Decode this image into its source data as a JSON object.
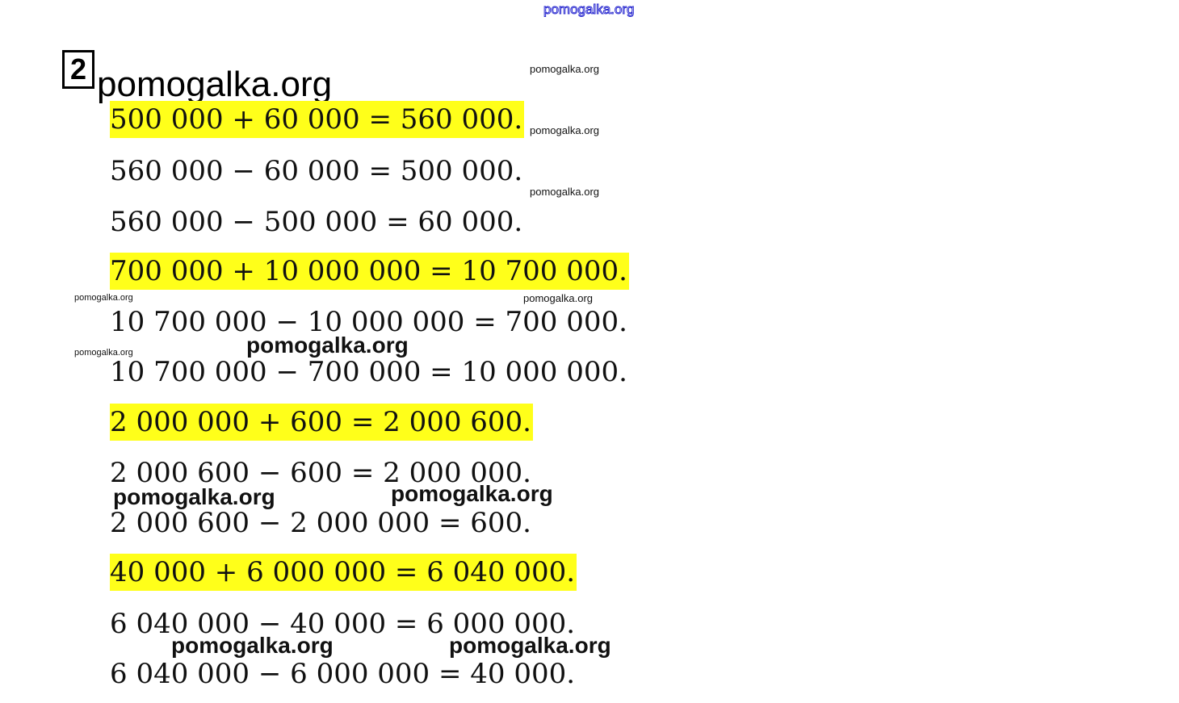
{
  "watermark": "pomogalka.org",
  "task_number": "2",
  "highlight_color": "#ffff1a",
  "equations": [
    {
      "text": "500 000 + 60 000 = 560 000.",
      "highlighted": true
    },
    {
      "text": "560 000 − 60 000 = 500 000.",
      "highlighted": false
    },
    {
      "text": "560 000 − 500 000 = 60 000.",
      "highlighted": false
    },
    {
      "text": "700 000 + 10 000 000 = 10 700 000.",
      "highlighted": true
    },
    {
      "text": "10 700 000 − 10 000 000 = 700 000.",
      "highlighted": false
    },
    {
      "text": "10 700 000 − 700 000 = 10 000 000.",
      "highlighted": false
    },
    {
      "text": "2 000 000 + 600 = 2 000 600.",
      "highlighted": true
    },
    {
      "text": "2 000 600 − 600 = 2 000 000.",
      "highlighted": false
    },
    {
      "text": "2 000 600 − 2 000 000 = 600.",
      "highlighted": false
    },
    {
      "text": "40 000 + 6 000 000 = 6 040 000.",
      "highlighted": true
    },
    {
      "text": "6 040 000 − 40 000 = 6 000 000.",
      "highlighted": false
    },
    {
      "text": "6 040 000 − 6 000 000 = 40 000.",
      "highlighted": false
    }
  ]
}
